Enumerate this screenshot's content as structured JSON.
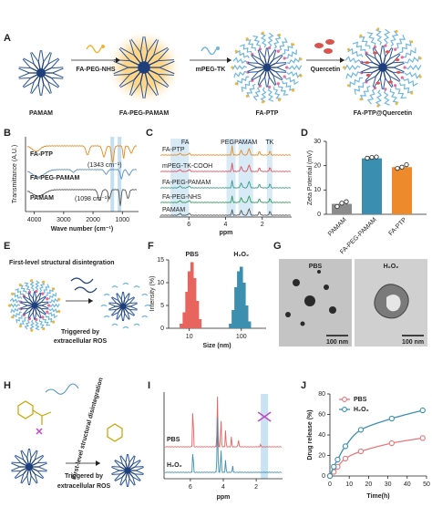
{
  "figure": {
    "A": {
      "label": "A",
      "compounds": [
        "PAMAM",
        "FA-PEG-PAMAM",
        "FA-PTP",
        "FA-PTP@Quercetin"
      ],
      "reagents": [
        "FA-PEG-NHS",
        "mPEG-TK",
        "Quercetin"
      ]
    },
    "B": {
      "label": "B",
      "type": "line",
      "xlabel": "Wave number (cm⁻¹)",
      "ylabel": "Transmittance (A.U.)",
      "xlim": [
        4300,
        450
      ],
      "xticks": [
        4000,
        3000,
        2000,
        1000
      ],
      "series": [
        {
          "name": "FA-PTP",
          "color": "#e8891d"
        },
        {
          "name": "FA-PEG-PAMAM",
          "color": "#5a8fc0"
        },
        {
          "name": "PAMAM",
          "color": "#555555"
        }
      ],
      "annotations": [
        {
          "text": "(1343 cm⁻¹)",
          "x": 1343
        },
        {
          "text": "(1098 cm⁻¹)",
          "x": 1098
        }
      ]
    },
    "C": {
      "label": "C",
      "type": "line",
      "xlabel": "ppm",
      "xlim": [
        7.6,
        0.4
      ],
      "xticks": [
        6,
        4,
        2
      ],
      "series": [
        {
          "name": "FA-PTP",
          "color": "#e8891d"
        },
        {
          "name": "mPEG-TK-COOH",
          "color": "#e0505a"
        },
        {
          "name": "FA-PEG-PAMAM",
          "color": "#3a9a8a"
        },
        {
          "name": "FA-PEG-NHS",
          "color": "#2f9a5a"
        },
        {
          "name": "PAMAM",
          "color": "#555555"
        }
      ],
      "regions": [
        "FA",
        "PEG",
        "PAMAM",
        "TK"
      ]
    },
    "D": {
      "label": "D",
      "type": "bar",
      "ylabel": "Zeta Potential (mV)",
      "ylim": [
        0,
        30
      ],
      "yticks": [
        0,
        10,
        20,
        30
      ],
      "categories": [
        "PAMAM",
        "FA-PEG-PAMAM",
        "FA-PTP"
      ],
      "values": [
        4.3,
        23,
        19.4
      ],
      "colors": [
        "#8c8c8c",
        "#3a8fb0",
        "#ec8a2c"
      ],
      "points": [
        [
          3.2,
          4.6,
          5.2
        ],
        [
          23.1,
          23.4,
          23.6
        ],
        [
          18.9,
          19.4,
          20.4
        ]
      ]
    },
    "E": {
      "label": "E",
      "title": "First-level structural disintegration",
      "caption": [
        "Triggered by",
        "extracellular ROS"
      ]
    },
    "F": {
      "label": "F",
      "type": "bar",
      "xlog": true,
      "xlabel": "Size (nm)",
      "ylabel": "Intensity (%)",
      "xlim": [
        4,
        300
      ],
      "xticks": [
        10,
        100
      ],
      "ylim": [
        0,
        15
      ],
      "yticks": [
        0,
        5,
        10,
        15
      ],
      "series": [
        {
          "name": "PBS",
          "color": "#e8645f",
          "x": [
            7,
            8,
            9,
            10,
            11.3,
            12.7,
            14.3,
            16
          ],
          "values": [
            1,
            3.5,
            8,
            12.5,
            14.5,
            11,
            6,
            2
          ]
        },
        {
          "name": "H₂O₂",
          "color": "#3d8fb0",
          "x": [
            62,
            70,
            79,
            89,
            100,
            113,
            127,
            143
          ],
          "values": [
            1,
            4,
            9,
            12.5,
            13.5,
            10,
            5,
            1.5
          ]
        }
      ]
    },
    "G": {
      "label": "G",
      "images": [
        "PBS",
        "H₂O₂"
      ],
      "scale_bars": [
        "100 nm",
        "100 nm"
      ]
    },
    "H": {
      "label": "H",
      "title": "First-level structural disintegration",
      "caption": [
        "Triggered by",
        "extracellular ROS"
      ]
    },
    "I": {
      "label": "I",
      "type": "line",
      "xlabel": "ppm",
      "xlim": [
        7.6,
        0.4
      ],
      "xticks": [
        6,
        4,
        2
      ],
      "series": [
        {
          "name": "PBS",
          "color": "#e8645f"
        },
        {
          "name": "H₂O₂",
          "color": "#3d8fb0"
        }
      ]
    },
    "J": {
      "label": "J",
      "type": "scatter",
      "xlabel": "Time(h)",
      "ylabel": "Drug release (%)",
      "xlim": [
        0,
        50
      ],
      "xticks": [
        0,
        10,
        20,
        30,
        40,
        50
      ],
      "ylim": [
        0,
        80
      ],
      "yticks": [
        0,
        20,
        40,
        60,
        80
      ],
      "series": [
        {
          "name": "PBS",
          "color": "#e8777a",
          "x": [
            0,
            2,
            4,
            8,
            16,
            32,
            48
          ],
          "values": [
            0,
            4,
            9,
            17,
            24,
            32,
            37
          ]
        },
        {
          "name": "H₂O₂",
          "color": "#3d8fb0",
          "x": [
            0,
            2,
            4,
            8,
            16,
            32,
            48
          ],
          "values": [
            0,
            9,
            16,
            29,
            45,
            56,
            64
          ]
        }
      ]
    }
  }
}
